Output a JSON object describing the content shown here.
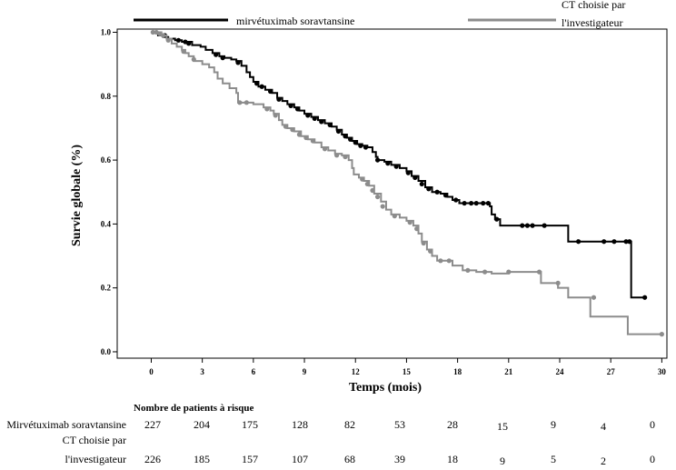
{
  "chart_data": {
    "type": "line",
    "subtype": "kaplan-meier",
    "xlabel": "Temps (mois)",
    "ylabel": "Survie globale (%)",
    "xlim": [
      -2,
      30.3
    ],
    "ylim": [
      -0.02,
      1.01
    ],
    "xticks": [
      "0",
      "3",
      "6",
      "9",
      "12",
      "15",
      "18",
      "21",
      "24",
      "27",
      "30"
    ],
    "yticks": [
      "0.0",
      "0.2",
      "0.4",
      "0.6",
      "0.8",
      "1.0"
    ],
    "grid": false,
    "legend_position": "top",
    "series": [
      {
        "name": "mirvétuximab soravtansine",
        "color": "#000000",
        "points": [
          [
            0,
            1.0
          ],
          [
            0.4,
            0.99
          ],
          [
            0.7,
            0.985
          ],
          [
            1,
            0.98
          ],
          [
            1.4,
            0.975
          ],
          [
            1.8,
            0.97
          ],
          [
            2.4,
            0.96
          ],
          [
            2.9,
            0.955
          ],
          [
            3.2,
            0.945
          ],
          [
            3.6,
            0.935
          ],
          [
            4.0,
            0.925
          ],
          [
            4.3,
            0.92
          ],
          [
            4.7,
            0.915
          ],
          [
            5.0,
            0.91
          ],
          [
            5.3,
            0.895
          ],
          [
            5.6,
            0.875
          ],
          [
            5.8,
            0.86
          ],
          [
            6.0,
            0.845
          ],
          [
            6.3,
            0.83
          ],
          [
            6.7,
            0.82
          ],
          [
            7.1,
            0.81
          ],
          [
            7.4,
            0.795
          ],
          [
            7.7,
            0.785
          ],
          [
            8.0,
            0.775
          ],
          [
            8.4,
            0.765
          ],
          [
            8.7,
            0.755
          ],
          [
            9.0,
            0.745
          ],
          [
            9.4,
            0.735
          ],
          [
            9.8,
            0.725
          ],
          [
            10.2,
            0.715
          ],
          [
            10.6,
            0.705
          ],
          [
            10.9,
            0.695
          ],
          [
            11.2,
            0.68
          ],
          [
            11.5,
            0.67
          ],
          [
            11.8,
            0.66
          ],
          [
            12.1,
            0.65
          ],
          [
            12.4,
            0.645
          ],
          [
            12.7,
            0.64
          ],
          [
            13.0,
            0.625
          ],
          [
            13.2,
            0.61
          ],
          [
            13.3,
            0.6
          ],
          [
            13.7,
            0.595
          ],
          [
            14.1,
            0.585
          ],
          [
            14.6,
            0.575
          ],
          [
            15.0,
            0.565
          ],
          [
            15.3,
            0.55
          ],
          [
            15.7,
            0.535
          ],
          [
            16.1,
            0.515
          ],
          [
            16.5,
            0.5
          ],
          [
            17.0,
            0.495
          ],
          [
            17.4,
            0.485
          ],
          [
            17.7,
            0.475
          ],
          [
            18.1,
            0.465
          ],
          [
            19.9,
            0.455
          ],
          [
            20.0,
            0.43
          ],
          [
            20.2,
            0.415
          ],
          [
            20.5,
            0.395
          ],
          [
            24.5,
            0.345
          ],
          [
            28.2,
            0.17
          ],
          [
            29,
            0.17
          ]
        ],
        "censored": [
          [
            0.5,
            0.995
          ],
          [
            0.8,
            0.99
          ],
          [
            1.6,
            0.975
          ],
          [
            2.0,
            0.97
          ],
          [
            2.2,
            0.965
          ],
          [
            3.8,
            0.93
          ],
          [
            4.2,
            0.92
          ],
          [
            5.1,
            0.905
          ],
          [
            6.2,
            0.84
          ],
          [
            6.5,
            0.83
          ],
          [
            7.0,
            0.815
          ],
          [
            7.5,
            0.79
          ],
          [
            8.2,
            0.77
          ],
          [
            8.6,
            0.76
          ],
          [
            9.2,
            0.74
          ],
          [
            9.6,
            0.73
          ],
          [
            10.0,
            0.72
          ],
          [
            10.5,
            0.71
          ],
          [
            11.0,
            0.69
          ],
          [
            11.4,
            0.675
          ],
          [
            11.7,
            0.665
          ],
          [
            12.0,
            0.655
          ],
          [
            12.3,
            0.645
          ],
          [
            12.6,
            0.64
          ],
          [
            13.3,
            0.6
          ],
          [
            13.9,
            0.59
          ],
          [
            14.4,
            0.58
          ],
          [
            15.1,
            0.56
          ],
          [
            15.5,
            0.545
          ],
          [
            15.9,
            0.525
          ],
          [
            16.3,
            0.51
          ],
          [
            16.8,
            0.5
          ],
          [
            17.3,
            0.49
          ],
          [
            17.9,
            0.475
          ],
          [
            18.4,
            0.465
          ],
          [
            18.8,
            0.465
          ],
          [
            19.1,
            0.465
          ],
          [
            19.5,
            0.465
          ],
          [
            19.8,
            0.465
          ],
          [
            20.3,
            0.415
          ],
          [
            21.8,
            0.395
          ],
          [
            22.1,
            0.395
          ],
          [
            22.4,
            0.395
          ],
          [
            23.1,
            0.395
          ],
          [
            25.1,
            0.345
          ],
          [
            26.6,
            0.345
          ],
          [
            27.2,
            0.345
          ],
          [
            27.9,
            0.345
          ],
          [
            28.1,
            0.345
          ],
          [
            29,
            0.17
          ]
        ]
      },
      {
        "name": "CT choisie par l'investigateur",
        "color": "#8c8c8c",
        "points": [
          [
            0,
            1.0
          ],
          [
            0.6,
            0.99
          ],
          [
            0.9,
            0.98
          ],
          [
            1.2,
            0.965
          ],
          [
            1.5,
            0.955
          ],
          [
            1.8,
            0.945
          ],
          [
            2.0,
            0.935
          ],
          [
            2.2,
            0.925
          ],
          [
            2.5,
            0.91
          ],
          [
            3.0,
            0.9
          ],
          [
            3.4,
            0.89
          ],
          [
            3.7,
            0.875
          ],
          [
            3.9,
            0.855
          ],
          [
            4.2,
            0.84
          ],
          [
            4.6,
            0.825
          ],
          [
            5.0,
            0.81
          ],
          [
            5.1,
            0.78
          ],
          [
            6.0,
            0.775
          ],
          [
            6.6,
            0.765
          ],
          [
            7.0,
            0.755
          ],
          [
            7.2,
            0.745
          ],
          [
            7.5,
            0.725
          ],
          [
            7.7,
            0.71
          ],
          [
            8.0,
            0.7
          ],
          [
            8.4,
            0.69
          ],
          [
            8.8,
            0.675
          ],
          [
            9.2,
            0.665
          ],
          [
            9.6,
            0.655
          ],
          [
            10.0,
            0.64
          ],
          [
            10.4,
            0.63
          ],
          [
            10.8,
            0.62
          ],
          [
            11.2,
            0.615
          ],
          [
            11.6,
            0.6
          ],
          [
            11.8,
            0.575
          ],
          [
            11.9,
            0.555
          ],
          [
            12.2,
            0.545
          ],
          [
            12.5,
            0.535
          ],
          [
            12.8,
            0.52
          ],
          [
            13.1,
            0.495
          ],
          [
            13.5,
            0.47
          ],
          [
            13.8,
            0.445
          ],
          [
            14.1,
            0.43
          ],
          [
            14.6,
            0.42
          ],
          [
            15.0,
            0.41
          ],
          [
            15.4,
            0.395
          ],
          [
            15.7,
            0.37
          ],
          [
            15.9,
            0.345
          ],
          [
            16.2,
            0.32
          ],
          [
            16.5,
            0.3
          ],
          [
            16.8,
            0.285
          ],
          [
            17.7,
            0.27
          ],
          [
            18.3,
            0.255
          ],
          [
            19.1,
            0.25
          ],
          [
            20.0,
            0.245
          ],
          [
            21.0,
            0.25
          ],
          [
            22.9,
            0.215
          ],
          [
            23.9,
            0.2
          ],
          [
            24.5,
            0.17
          ],
          [
            25.8,
            0.11
          ],
          [
            28.0,
            0.055
          ],
          [
            30,
            0.055
          ]
        ],
        "censored": [
          [
            0.1,
            1.0
          ],
          [
            0.3,
            1.0
          ],
          [
            0.5,
            0.995
          ],
          [
            0.7,
            0.99
          ],
          [
            1.0,
            0.975
          ],
          [
            1.9,
            0.94
          ],
          [
            2.5,
            0.915
          ],
          [
            5.2,
            0.78
          ],
          [
            5.6,
            0.78
          ],
          [
            6.8,
            0.76
          ],
          [
            7.3,
            0.74
          ],
          [
            7.9,
            0.705
          ],
          [
            8.3,
            0.695
          ],
          [
            8.7,
            0.68
          ],
          [
            9.1,
            0.67
          ],
          [
            9.5,
            0.66
          ],
          [
            10.2,
            0.635
          ],
          [
            10.9,
            0.615
          ],
          [
            11.4,
            0.61
          ],
          [
            12.4,
            0.54
          ],
          [
            12.7,
            0.525
          ],
          [
            13.0,
            0.505
          ],
          [
            13.3,
            0.485
          ],
          [
            13.6,
            0.455
          ],
          [
            14.3,
            0.425
          ],
          [
            15.2,
            0.405
          ],
          [
            15.6,
            0.385
          ],
          [
            16.0,
            0.34
          ],
          [
            16.4,
            0.315
          ],
          [
            17.0,
            0.285
          ],
          [
            17.5,
            0.285
          ],
          [
            18.6,
            0.255
          ],
          [
            19.6,
            0.25
          ],
          [
            21.0,
            0.25
          ],
          [
            22.8,
            0.25
          ],
          [
            23.9,
            0.215
          ],
          [
            26.0,
            0.17
          ],
          [
            30,
            0.055
          ]
        ]
      }
    ],
    "risk_table": {
      "title": "Nombre de patients à risque",
      "rows": [
        {
          "label": [
            "Mirvétuximab soravtansine"
          ],
          "values": [
            "227",
            "204",
            "175",
            "128",
            "82",
            "53",
            "28",
            "15",
            "9",
            "4",
            "0"
          ]
        },
        {
          "label": [
            "CT choisie par",
            "l'investigateur"
          ],
          "values": [
            "226",
            "185",
            "157",
            "107",
            "68",
            "39",
            "18",
            "9",
            "5",
            "2",
            "0"
          ]
        }
      ]
    },
    "legend": [
      {
        "label": [
          "mirvétuximab soravtansine"
        ],
        "color": "#000000"
      },
      {
        "label": [
          "CT choisie par",
          "l'investigateur"
        ],
        "color": "#8c8c8c"
      }
    ]
  }
}
